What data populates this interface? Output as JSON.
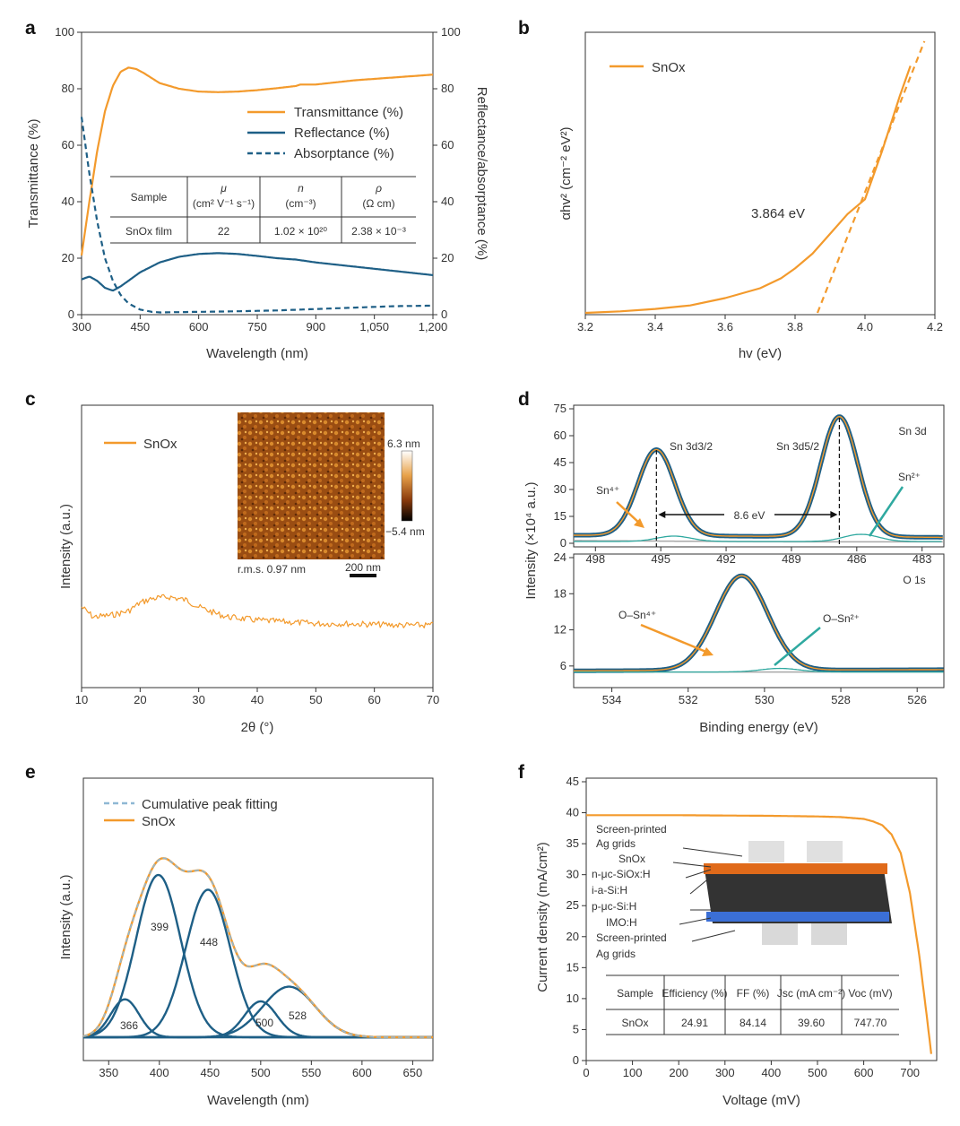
{
  "colors": {
    "orange": "#F39A2C",
    "blue": "#1E5F86",
    "teal": "#2FA9A0",
    "dashblue": "#8FB8D4",
    "gray": "#A8A8A8"
  },
  "panels": {
    "a": "a",
    "b": "b",
    "c": "c",
    "d": "d",
    "e": "e",
    "f": "f"
  },
  "chart_data": [
    {
      "panel": "a",
      "type": "line",
      "xlabel": "Wavelength (nm)",
      "ylabel": "Transmittance (%)",
      "y2label": "Reflectance/absorptance (%)",
      "xlim": [
        300,
        1200
      ],
      "ylim": [
        0,
        100
      ],
      "y2lim": [
        0,
        100
      ],
      "xticks": [
        "300",
        "450",
        "600",
        "750",
        "900",
        "1,050",
        "1,200"
      ],
      "yticks": [
        "0",
        "20",
        "40",
        "60",
        "80",
        "100"
      ],
      "y2ticks": [
        "0",
        "20",
        "40",
        "60",
        "80",
        "100"
      ],
      "legend": [
        "Transmittance (%)",
        "Reflectance (%)",
        "Absorptance (%)"
      ],
      "series": [
        {
          "name": "Transmittance (%)",
          "x": [
            300,
            320,
            340,
            360,
            380,
            400,
            420,
            440,
            460,
            500,
            550,
            600,
            650,
            700,
            750,
            800,
            850,
            860,
            900,
            1000,
            1100,
            1200
          ],
          "y": [
            21,
            40,
            58,
            72,
            81,
            86,
            87.5,
            87,
            85.5,
            82,
            80,
            79,
            78.8,
            79,
            79.5,
            80.2,
            81,
            81.5,
            81.5,
            83,
            84,
            85
          ]
        },
        {
          "name": "Reflectance (%)",
          "x": [
            300,
            320,
            340,
            360,
            380,
            400,
            450,
            500,
            550,
            600,
            650,
            700,
            750,
            800,
            850,
            900,
            1000,
            1100,
            1200
          ],
          "y": [
            12.5,
            13.5,
            12,
            9.5,
            8.5,
            10,
            15,
            18.5,
            20.5,
            21.5,
            21.8,
            21.5,
            20.8,
            20,
            19.5,
            18.5,
            17,
            15.5,
            14
          ]
        },
        {
          "name": "Absorptance (%)",
          "x": [
            300,
            320,
            340,
            360,
            380,
            400,
            420,
            450,
            480,
            500,
            600,
            700,
            800,
            900,
            1000,
            1100,
            1200
          ],
          "y": [
            70,
            50,
            33,
            20,
            12,
            7,
            4,
            1.8,
            1,
            0.8,
            1,
            1.2,
            1.5,
            2,
            2.5,
            3,
            3.2
          ]
        }
      ],
      "table": {
        "headers": [
          [
            "Sample",
            ""
          ],
          [
            "μ",
            "(cm² V⁻¹ s⁻¹)"
          ],
          [
            "n",
            "(cm⁻³)"
          ],
          [
            "ρ",
            "(Ω cm)"
          ]
        ],
        "row": [
          "SnOx film",
          "22",
          "1.02 × 10²⁰",
          "2.38 × 10⁻³"
        ]
      }
    },
    {
      "panel": "b",
      "type": "line",
      "xlabel": "hv (eV)",
      "ylabel": "αhv² (cm⁻² eV²)",
      "xlim": [
        3.2,
        4.2
      ],
      "xticks": [
        "3.2",
        "3.4",
        "3.6",
        "3.8",
        "4.0",
        "4.2"
      ],
      "legend": [
        "SnOx"
      ],
      "annotation": "3.864 eV",
      "series": [
        {
          "name": "SnOx",
          "x": [
            3.2,
            3.3,
            3.4,
            3.5,
            3.6,
            3.7,
            3.76,
            3.8,
            3.85,
            3.9,
            3.95,
            4.0,
            4.05,
            4.1,
            4.13
          ],
          "y": [
            0.0,
            0.3,
            0.8,
            1.5,
            3.0,
            5.0,
            7.0,
            9.0,
            12.0,
            16.0,
            20.0,
            23.0,
            33.0,
            44.0,
            50.0
          ]
        },
        {
          "name": "fit",
          "x": [
            3.864,
            4.17
          ],
          "y": [
            0.0,
            55.0
          ]
        }
      ]
    },
    {
      "panel": "c",
      "type": "line",
      "xlabel": "2θ (°)",
      "ylabel": "Intensity (a.u.)",
      "xlim": [
        10,
        70
      ],
      "xticks": [
        "10",
        "20",
        "30",
        "40",
        "50",
        "60",
        "70"
      ],
      "legend": [
        "SnOx"
      ],
      "inset": {
        "scale_max": "6.3 nm",
        "scale_min": "−5.4 nm",
        "rms": "r.m.s. 0.97 nm",
        "scalebar": "200 nm"
      },
      "series": [
        {
          "name": "SnOx",
          "x": [
            10,
            12,
            15,
            18,
            20,
            22,
            25,
            28,
            30,
            33,
            35,
            40,
            45,
            50,
            55,
            60,
            65,
            70
          ],
          "y": [
            1.0,
            0.88,
            0.9,
            0.95,
            1.05,
            1.1,
            1.12,
            1.08,
            1.0,
            0.92,
            0.88,
            0.84,
            0.82,
            0.8,
            0.8,
            0.79,
            0.78,
            0.78
          ]
        }
      ]
    },
    {
      "panel": "d",
      "type": "line",
      "xlabel": "Binding energy (eV)",
      "ylabel": "Intensity (×10⁴ a.u.)",
      "top": {
        "label": "Sn 3d",
        "xlim": [
          499,
          482
        ],
        "ylim": [
          0,
          75
        ],
        "xticks": [
          "498",
          "495",
          "492",
          "489",
          "486",
          "483"
        ],
        "yticks": [
          "0",
          "15",
          "30",
          "45",
          "60",
          "75"
        ],
        "peaks": [
          "Sn 3d3/2",
          "Sn 3d5/2"
        ],
        "peak_positions": [
          495.2,
          486.8
        ],
        "peak_heights": [
          52,
          70
        ],
        "split": "8.6 eV",
        "species": [
          "Sn⁴⁺",
          "Sn²⁺"
        ]
      },
      "bottom": {
        "label": "O 1s",
        "xlim": [
          535,
          525.3
        ],
        "ylim": [
          3,
          24
        ],
        "xticks": [
          "534",
          "532",
          "530",
          "528",
          "526"
        ],
        "yticks": [
          "6",
          "12",
          "18",
          "24"
        ],
        "peak_position": 530.6,
        "peak_height": 21,
        "species": [
          "O–Sn⁴⁺",
          "O–Sn²⁺"
        ]
      }
    },
    {
      "panel": "e",
      "type": "line",
      "xlabel": "Wavelength (nm)",
      "ylabel": "Intensity (a.u.)",
      "xlim": [
        325,
        670
      ],
      "xticks": [
        "350",
        "400",
        "450",
        "500",
        "550",
        "600",
        "650"
      ],
      "legend": [
        "Cumulative peak fitting",
        "SnOx"
      ],
      "peaks": [
        {
          "center": 366,
          "label": "366",
          "amp": 0.18
        },
        {
          "center": 399,
          "label": "399",
          "amp": 0.77
        },
        {
          "center": 448,
          "label": "448",
          "amp": 0.7
        },
        {
          "center": 500,
          "label": "500",
          "amp": 0.17
        },
        {
          "center": 528,
          "label": "528",
          "amp": 0.24
        }
      ]
    },
    {
      "panel": "f",
      "type": "line",
      "xlabel": "Voltage (mV)",
      "ylabel": "Current density (mA/cm²)",
      "xlim": [
        0,
        750
      ],
      "ylim": [
        0,
        45
      ],
      "xticks": [
        "0",
        "100",
        "200",
        "300",
        "400",
        "500",
        "600",
        "700"
      ],
      "yticks": [
        "0",
        "5",
        "10",
        "15",
        "20",
        "25",
        "30",
        "35",
        "40",
        "45"
      ],
      "series": [
        {
          "name": "SnOx",
          "x": [
            0,
            100,
            200,
            300,
            400,
            500,
            550,
            600,
            620,
            640,
            660,
            680,
            700,
            720,
            735,
            747.7
          ],
          "y": [
            39.6,
            39.6,
            39.6,
            39.55,
            39.5,
            39.4,
            39.3,
            39.0,
            38.6,
            38.0,
            36.5,
            33.5,
            27.0,
            17.0,
            8.0,
            0
          ]
        }
      ],
      "stack_labels": [
        "Screen-printed",
        "Ag grids",
        "SnOx",
        "n-μc-SiOx:H",
        "i-a-Si:H",
        "p-μc-Si:H",
        "IMO:H",
        "Screen-printed",
        "Ag grids"
      ],
      "table": {
        "headers": [
          "Sample",
          "Efficiency (%)",
          "FF (%)",
          "Jsc (mA cm⁻²)",
          "Voc (mV)"
        ],
        "row": [
          "SnOx",
          "24.91",
          "84.14",
          "39.60",
          "747.70"
        ]
      }
    }
  ]
}
